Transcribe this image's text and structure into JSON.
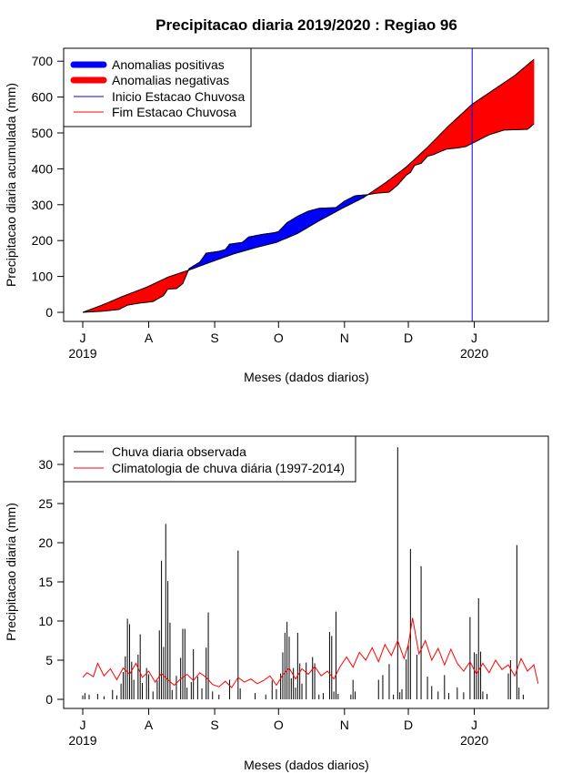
{
  "title": "Precipitacao diaria 2019/2020 : Regiao 96",
  "colors": {
    "positive": "#0000ff",
    "negative": "#ff0000",
    "start_line": "#0000ff",
    "end_line": "#ff0000",
    "observed": "#000000",
    "climatology": "#ff0000"
  },
  "chart_data": [
    {
      "type": "area",
      "ylabel": "Precipitacao diaria acumulada (mm)",
      "xlabel": "Meses (dados diarios)",
      "ylim": [
        0,
        700
      ],
      "yticks": [
        0,
        100,
        200,
        300,
        400,
        500,
        600,
        700
      ],
      "x_ticks": [
        {
          "label": "J",
          "date": "2019-07-01",
          "year": "2019"
        },
        {
          "label": "A",
          "date": "2019-08-01"
        },
        {
          "label": "S",
          "date": "2019-09-01"
        },
        {
          "label": "O",
          "date": "2019-10-01"
        },
        {
          "label": "N",
          "date": "2019-11-01"
        },
        {
          "label": "D",
          "date": "2019-12-01"
        },
        {
          "label": "J",
          "date": "2020-01-01",
          "year": "2020"
        }
      ],
      "legend": {
        "position": "top-left",
        "entries": [
          {
            "label": "Anomalias positivas",
            "color": "#0000ff",
            "style": "thick"
          },
          {
            "label": "Anomalias negativas",
            "color": "#ff0000",
            "style": "thick"
          },
          {
            "label": "Inicio Estacao Chuvosa",
            "color": "#0000ff",
            "style": "thin"
          },
          {
            "label": "Fim Estacao Chuvosa",
            "color": "#ff0000",
            "style": "thin"
          }
        ]
      },
      "markers": [
        {
          "label": "Inicio Estacao Chuvosa",
          "date": "2019-12-31"
        }
      ],
      "observed": [
        [
          "2019-07-01",
          0
        ],
        [
          "2019-07-10",
          3
        ],
        [
          "2019-07-18",
          8
        ],
        [
          "2019-07-22",
          20
        ],
        [
          "2019-07-28",
          26
        ],
        [
          "2019-08-03",
          30
        ],
        [
          "2019-08-08",
          47
        ],
        [
          "2019-08-10",
          65
        ],
        [
          "2019-08-14",
          66
        ],
        [
          "2019-08-17",
          80
        ],
        [
          "2019-08-20",
          122
        ],
        [
          "2019-08-25",
          140
        ],
        [
          "2019-08-28",
          165
        ],
        [
          "2019-09-03",
          170
        ],
        [
          "2019-09-06",
          175
        ],
        [
          "2019-09-08",
          190
        ],
        [
          "2019-09-14",
          195
        ],
        [
          "2019-09-17",
          210
        ],
        [
          "2019-09-23",
          217
        ],
        [
          "2019-09-29",
          222
        ],
        [
          "2019-10-01",
          225
        ],
        [
          "2019-10-05",
          250
        ],
        [
          "2019-10-10",
          268
        ],
        [
          "2019-10-15",
          282
        ],
        [
          "2019-10-20",
          290
        ],
        [
          "2019-10-28",
          292
        ],
        [
          "2019-11-01",
          310
        ],
        [
          "2019-11-06",
          325
        ],
        [
          "2019-11-12",
          328
        ],
        [
          "2019-11-16",
          332
        ],
        [
          "2019-11-22",
          335
        ],
        [
          "2019-11-26",
          355
        ],
        [
          "2019-11-30",
          382
        ],
        [
          "2019-12-02",
          390
        ],
        [
          "2019-12-04",
          410
        ],
        [
          "2019-12-07",
          415
        ],
        [
          "2019-12-10",
          435
        ],
        [
          "2019-12-13",
          440
        ],
        [
          "2019-12-16",
          448
        ],
        [
          "2019-12-19",
          455
        ],
        [
          "2019-12-24",
          458
        ],
        [
          "2019-12-28",
          462
        ],
        [
          "2020-01-03",
          480
        ],
        [
          "2020-01-08",
          495
        ],
        [
          "2020-01-15",
          508
        ],
        [
          "2020-01-26",
          510
        ],
        [
          "2020-01-29",
          525
        ]
      ],
      "climatology": [
        [
          "2019-07-01",
          0
        ],
        [
          "2019-07-10",
          20
        ],
        [
          "2019-07-20",
          45
        ],
        [
          "2019-07-31",
          70
        ],
        [
          "2019-08-10",
          98
        ],
        [
          "2019-08-20",
          118
        ],
        [
          "2019-08-31",
          142
        ],
        [
          "2019-09-10",
          163
        ],
        [
          "2019-09-20",
          180
        ],
        [
          "2019-09-30",
          195
        ],
        [
          "2019-10-10",
          220
        ],
        [
          "2019-10-20",
          255
        ],
        [
          "2019-10-31",
          290
        ],
        [
          "2019-11-10",
          320
        ],
        [
          "2019-11-20",
          360
        ],
        [
          "2019-11-30",
          405
        ],
        [
          "2019-12-10",
          460
        ],
        [
          "2019-12-20",
          520
        ],
        [
          "2019-12-31",
          580
        ],
        [
          "2020-01-10",
          620
        ],
        [
          "2020-01-20",
          660
        ],
        [
          "2020-01-29",
          705
        ]
      ]
    },
    {
      "type": "bar",
      "ylabel": "Precipitacao diaria (mm)",
      "xlabel": "Meses (dados diarios)",
      "ylim": [
        0,
        32
      ],
      "yticks": [
        0,
        5,
        10,
        15,
        20,
        25,
        30
      ],
      "x_ticks": [
        {
          "label": "J",
          "date": "2019-07-01",
          "year": "2019"
        },
        {
          "label": "A",
          "date": "2019-08-01"
        },
        {
          "label": "S",
          "date": "2019-09-01"
        },
        {
          "label": "O",
          "date": "2019-10-01"
        },
        {
          "label": "N",
          "date": "2019-11-01"
        },
        {
          "label": "D",
          "date": "2019-12-01"
        },
        {
          "label": "J",
          "date": "2020-01-01",
          "year": "2020"
        }
      ],
      "legend": {
        "position": "top-left",
        "entries": [
          {
            "label": "Chuva diaria observada",
            "color": "#000000"
          },
          {
            "label": "Climatologia de chuva diária (1997-2014)",
            "color": "#ff0000"
          }
        ]
      },
      "observed_bars": [
        [
          "2019-07-01",
          0.5
        ],
        [
          "2019-07-02",
          0.8
        ],
        [
          "2019-07-04",
          0.6
        ],
        [
          "2019-07-08",
          0.7
        ],
        [
          "2019-07-11",
          0.4
        ],
        [
          "2019-07-15",
          1.2
        ],
        [
          "2019-07-17",
          0.5
        ],
        [
          "2019-07-19",
          2.0
        ],
        [
          "2019-07-20",
          3.5
        ],
        [
          "2019-07-21",
          5.5
        ],
        [
          "2019-07-22",
          10.3
        ],
        [
          "2019-07-23",
          9.6
        ],
        [
          "2019-07-24",
          4.8
        ],
        [
          "2019-07-25",
          2.5
        ],
        [
          "2019-07-27",
          5.7
        ],
        [
          "2019-07-28",
          8.3
        ],
        [
          "2019-07-29",
          2.1
        ],
        [
          "2019-07-31",
          4.0
        ],
        [
          "2019-08-01",
          3.2
        ],
        [
          "2019-08-03",
          1.0
        ],
        [
          "2019-08-05",
          2.4
        ],
        [
          "2019-08-06",
          8.8
        ],
        [
          "2019-08-07",
          17.7
        ],
        [
          "2019-08-08",
          6.7
        ],
        [
          "2019-08-09",
          22.4
        ],
        [
          "2019-08-10",
          15.1
        ],
        [
          "2019-08-11",
          9.8
        ],
        [
          "2019-08-12",
          1.2
        ],
        [
          "2019-08-14",
          3.0
        ],
        [
          "2019-08-16",
          5.3
        ],
        [
          "2019-08-17",
          9.0
        ],
        [
          "2019-08-18",
          9.0
        ],
        [
          "2019-08-19",
          1.5
        ],
        [
          "2019-08-21",
          2.2
        ],
        [
          "2019-08-22",
          6.4
        ],
        [
          "2019-08-24",
          2.9
        ],
        [
          "2019-08-26",
          1.4
        ],
        [
          "2019-08-28",
          6.6
        ],
        [
          "2019-08-29",
          11.1
        ],
        [
          "2019-08-31",
          1.0
        ],
        [
          "2019-09-03",
          0.6
        ],
        [
          "2019-09-08",
          2.5
        ],
        [
          "2019-09-12",
          19.0
        ],
        [
          "2019-09-13",
          1.4
        ],
        [
          "2019-09-20",
          0.8
        ],
        [
          "2019-09-25",
          0.6
        ],
        [
          "2019-09-28",
          2.4
        ],
        [
          "2019-09-30",
          1.3
        ],
        [
          "2019-10-02",
          3.3
        ],
        [
          "2019-10-03",
          6.0
        ],
        [
          "2019-10-04",
          8.5
        ],
        [
          "2019-10-05",
          9.9
        ],
        [
          "2019-10-06",
          8.0
        ],
        [
          "2019-10-07",
          2.7
        ],
        [
          "2019-10-08",
          4.0
        ],
        [
          "2019-10-09",
          1.5
        ],
        [
          "2019-10-10",
          8.5
        ],
        [
          "2019-10-11",
          4.6
        ],
        [
          "2019-10-12",
          2.0
        ],
        [
          "2019-10-14",
          4.7
        ],
        [
          "2019-10-17",
          5.4
        ],
        [
          "2019-10-18",
          4.6
        ],
        [
          "2019-10-20",
          0.6
        ],
        [
          "2019-10-22",
          0.8
        ],
        [
          "2019-10-25",
          8.6
        ],
        [
          "2019-10-26",
          8.1
        ],
        [
          "2019-10-27",
          1.0
        ],
        [
          "2019-10-28",
          11.2
        ],
        [
          "2019-10-29",
          0.7
        ],
        [
          "2019-11-04",
          0.6
        ],
        [
          "2019-11-05",
          2.5
        ],
        [
          "2019-11-06",
          1.0
        ],
        [
          "2019-11-17",
          2.5
        ],
        [
          "2019-11-19",
          3.1
        ],
        [
          "2019-11-22",
          4.5
        ],
        [
          "2019-11-24",
          0.6
        ],
        [
          "2019-11-26",
          32.2
        ],
        [
          "2019-11-27",
          0.9
        ],
        [
          "2019-11-28",
          1.3
        ],
        [
          "2019-11-30",
          5.1
        ],
        [
          "2019-12-01",
          7.1
        ],
        [
          "2019-12-02",
          19.2
        ],
        [
          "2019-12-05",
          5.7
        ],
        [
          "2019-12-07",
          17.0
        ],
        [
          "2019-12-10",
          2.9
        ],
        [
          "2019-12-12",
          1.7
        ],
        [
          "2019-12-15",
          1.0
        ],
        [
          "2019-12-18",
          3.1
        ],
        [
          "2019-12-20",
          0.8
        ],
        [
          "2019-12-24",
          1.5
        ],
        [
          "2019-12-27",
          0.9
        ],
        [
          "2019-12-30",
          10.5
        ],
        [
          "2020-01-01",
          6.0
        ],
        [
          "2020-01-02",
          5.8
        ],
        [
          "2020-01-03",
          12.9
        ],
        [
          "2020-01-04",
          6.1
        ],
        [
          "2020-01-05",
          1.0
        ],
        [
          "2020-01-07",
          0.7
        ],
        [
          "2020-01-17",
          3.3
        ],
        [
          "2020-01-18",
          5.0
        ],
        [
          "2020-01-21",
          19.7
        ],
        [
          "2020-01-22",
          1.5
        ],
        [
          "2020-01-24",
          0.6
        ]
      ],
      "climatology_line": [
        [
          "2019-07-01",
          2.8
        ],
        [
          "2019-07-03",
          3.4
        ],
        [
          "2019-07-06",
          2.9
        ],
        [
          "2019-07-08",
          4.6
        ],
        [
          "2019-07-11",
          3.0
        ],
        [
          "2019-07-14",
          3.9
        ],
        [
          "2019-07-17",
          2.5
        ],
        [
          "2019-07-20",
          4.0
        ],
        [
          "2019-07-23",
          3.2
        ],
        [
          "2019-07-26",
          4.6
        ],
        [
          "2019-07-29",
          2.8
        ],
        [
          "2019-08-01",
          3.6
        ],
        [
          "2019-08-04",
          2.2
        ],
        [
          "2019-08-07",
          3.3
        ],
        [
          "2019-08-10",
          2.5
        ],
        [
          "2019-08-13",
          1.8
        ],
        [
          "2019-08-16",
          2.6
        ],
        [
          "2019-08-19",
          3.2
        ],
        [
          "2019-08-22",
          2.4
        ],
        [
          "2019-08-25",
          3.4
        ],
        [
          "2019-08-28",
          2.8
        ],
        [
          "2019-08-31",
          1.9
        ],
        [
          "2019-09-03",
          1.6
        ],
        [
          "2019-09-06",
          2.3
        ],
        [
          "2019-09-09",
          1.5
        ],
        [
          "2019-09-12",
          2.8
        ],
        [
          "2019-09-15",
          2.2
        ],
        [
          "2019-09-18",
          2.6
        ],
        [
          "2019-09-21",
          2.0
        ],
        [
          "2019-09-24",
          2.4
        ],
        [
          "2019-09-27",
          3.0
        ],
        [
          "2019-09-30",
          1.8
        ],
        [
          "2019-10-03",
          3.1
        ],
        [
          "2019-10-06",
          4.0
        ],
        [
          "2019-10-09",
          2.6
        ],
        [
          "2019-10-12",
          3.9
        ],
        [
          "2019-10-15",
          3.2
        ],
        [
          "2019-10-18",
          4.2
        ],
        [
          "2019-10-21",
          3.0
        ],
        [
          "2019-10-24",
          3.6
        ],
        [
          "2019-10-27",
          2.6
        ],
        [
          "2019-10-30",
          4.2
        ],
        [
          "2019-11-02",
          5.4
        ],
        [
          "2019-11-05",
          4.1
        ],
        [
          "2019-11-08",
          6.0
        ],
        [
          "2019-11-11",
          5.0
        ],
        [
          "2019-11-14",
          6.6
        ],
        [
          "2019-11-17",
          4.8
        ],
        [
          "2019-11-20",
          7.0
        ],
        [
          "2019-11-23",
          5.6
        ],
        [
          "2019-11-26",
          7.5
        ],
        [
          "2019-11-29",
          5.2
        ],
        [
          "2019-12-01",
          7.0
        ],
        [
          "2019-12-03",
          10.4
        ],
        [
          "2019-12-06",
          5.8
        ],
        [
          "2019-12-09",
          7.5
        ],
        [
          "2019-12-12",
          5.0
        ],
        [
          "2019-12-15",
          6.5
        ],
        [
          "2019-12-18",
          4.4
        ],
        [
          "2019-12-21",
          6.4
        ],
        [
          "2019-12-24",
          4.6
        ],
        [
          "2019-12-27",
          3.6
        ],
        [
          "2019-12-30",
          4.8
        ],
        [
          "2020-01-02",
          3.2
        ],
        [
          "2020-01-05",
          4.6
        ],
        [
          "2020-01-08",
          3.4
        ],
        [
          "2020-01-11",
          5.0
        ],
        [
          "2020-01-14",
          3.8
        ],
        [
          "2020-01-17",
          4.4
        ],
        [
          "2020-01-20",
          3.0
        ],
        [
          "2020-01-23",
          5.2
        ],
        [
          "2020-01-26",
          3.6
        ],
        [
          "2020-01-29",
          4.4
        ],
        [
          "2020-01-31",
          2.0
        ]
      ]
    }
  ]
}
